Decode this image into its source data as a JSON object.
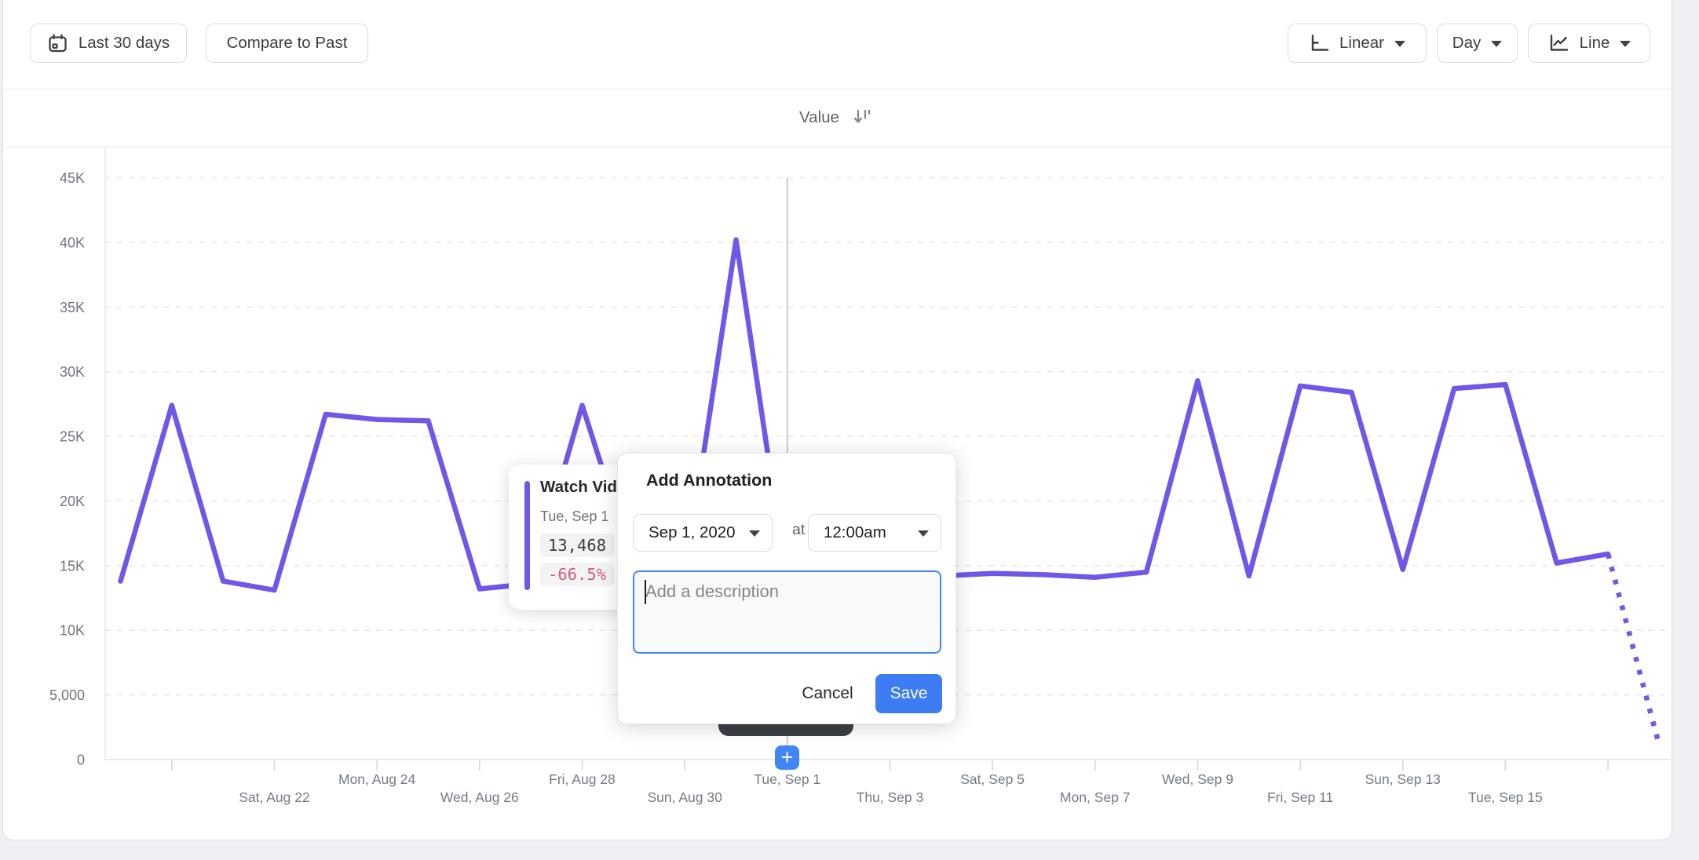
{
  "page": {
    "background": "#eef0f3",
    "card_background": "#ffffff",
    "card_border": "#dcdfe4"
  },
  "toolbar": {
    "date_range_button": {
      "label": "Last 30 days",
      "icon": "calendar-icon"
    },
    "compare_button": {
      "label": "Compare to Past"
    },
    "scale_dropdown": {
      "label": "Linear",
      "icon": "axis-icon"
    },
    "granularity_dropdown": {
      "label": "Day"
    },
    "chart_type_dropdown": {
      "label": "Line",
      "icon": "line-chart-icon"
    }
  },
  "header": {
    "column_label": "Value",
    "sort_icon": "sort-descending-icon"
  },
  "tooltip": {
    "series_label": "Watch Vid",
    "date": "Tue, Sep 1",
    "value": "13,468",
    "change": "-66.5%",
    "accent_color": "#6e58e8",
    "change_color": "#d65d77"
  },
  "modal": {
    "title": "Add Annotation",
    "date_select": "Sep 1, 2020",
    "at_label": "at",
    "time_select": "12:00am",
    "description_placeholder": "Add a description",
    "cancel_label": "Cancel",
    "save_label": "Save",
    "accent_blue": "#3d7cf2"
  },
  "annotation_marker": {
    "plus_label": "+"
  },
  "chart_data": {
    "type": "line",
    "title": "",
    "ylim": [
      0,
      45000
    ],
    "grid": "horizontal-dashed",
    "legend_position": "none",
    "line_color": "#6e58e8",
    "y_ticks": [
      {
        "label": "0",
        "value": 0
      },
      {
        "label": "5,000",
        "value": 5000
      },
      {
        "label": "10K",
        "value": 10000
      },
      {
        "label": "15K",
        "value": 15000
      },
      {
        "label": "20K",
        "value": 20000
      },
      {
        "label": "25K",
        "value": 25000
      },
      {
        "label": "30K",
        "value": 30000
      },
      {
        "label": "35K",
        "value": 35000
      },
      {
        "label": "40K",
        "value": 40000
      },
      {
        "label": "45K",
        "value": 45000
      }
    ],
    "series": [
      {
        "name": "Watch Vid",
        "points": [
          {
            "date": "Wed, Aug 19",
            "value": 13800
          },
          {
            "date": "Thu, Aug 20",
            "value": 27400
          },
          {
            "date": "Fri, Aug 21",
            "value": 13800
          },
          {
            "date": "Sat, Aug 22",
            "value": 13100
          },
          {
            "date": "Sun, Aug 23",
            "value": 26700
          },
          {
            "date": "Mon, Aug 24",
            "value": 26300
          },
          {
            "date": "Tue, Aug 25",
            "value": 26200
          },
          {
            "date": "Wed, Aug 26",
            "value": 13200
          },
          {
            "date": "Thu, Aug 27",
            "value": 13600
          },
          {
            "date": "Fri, Aug 28",
            "value": 27400
          },
          {
            "date": "Sat, Aug 29",
            "value": 15000
          },
          {
            "date": "Sun, Aug 30",
            "value": 14000
          },
          {
            "date": "Mon, Aug 31",
            "value": 40200
          },
          {
            "date": "Tue, Sep 1",
            "value": 13468
          },
          {
            "date": "Wed, Sep 2",
            "value": 13900
          },
          {
            "date": "Thu, Sep 3",
            "value": 14000
          },
          {
            "date": "Fri, Sep 4",
            "value": 14200
          },
          {
            "date": "Sat, Sep 5",
            "value": 14400
          },
          {
            "date": "Sun, Sep 6",
            "value": 14300
          },
          {
            "date": "Mon, Sep 7",
            "value": 14100
          },
          {
            "date": "Tue, Sep 8",
            "value": 14500
          },
          {
            "date": "Wed, Sep 9",
            "value": 29300
          },
          {
            "date": "Thu, Sep 10",
            "value": 14200
          },
          {
            "date": "Fri, Sep 11",
            "value": 28900
          },
          {
            "date": "Sat, Sep 12",
            "value": 28400
          },
          {
            "date": "Sun, Sep 13",
            "value": 14700
          },
          {
            "date": "Mon, Sep 14",
            "value": 28700
          },
          {
            "date": "Tue, Sep 15",
            "value": 29000
          },
          {
            "date": "Wed, Sep 16",
            "value": 15200
          },
          {
            "date": "Thu, Sep 17",
            "value": 15900
          },
          {
            "date": "Fri, Sep 18",
            "value": 1100
          }
        ]
      }
    ],
    "dashed_tail_from_index": 29,
    "crosshair_index": 13,
    "selected_point": {
      "date": "Tue, Sep 1",
      "value": 13468,
      "change": "-66.5%"
    },
    "x_tick_step_days": 2,
    "x_labels": [
      {
        "label": "Sat, Aug 22",
        "index": 3,
        "row": "lower"
      },
      {
        "label": "Mon, Aug 24",
        "index": 5,
        "row": "upper"
      },
      {
        "label": "Wed, Aug 26",
        "index": 7,
        "row": "lower"
      },
      {
        "label": "Fri, Aug 28",
        "index": 9,
        "row": "upper"
      },
      {
        "label": "Sun, Aug 30",
        "index": 11,
        "row": "lower"
      },
      {
        "label": "Tue, Sep 1",
        "index": 13,
        "row": "upper"
      },
      {
        "label": "Thu, Sep 3",
        "index": 15,
        "row": "lower"
      },
      {
        "label": "Sat, Sep 5",
        "index": 17,
        "row": "upper"
      },
      {
        "label": "Mon, Sep 7",
        "index": 19,
        "row": "lower"
      },
      {
        "label": "Wed, Sep 9",
        "index": 21,
        "row": "upper"
      },
      {
        "label": "Fri, Sep 11",
        "index": 23,
        "row": "lower"
      },
      {
        "label": "Sun, Sep 13",
        "index": 25,
        "row": "upper"
      },
      {
        "label": "Tue, Sep 15",
        "index": 27,
        "row": "lower"
      }
    ]
  }
}
